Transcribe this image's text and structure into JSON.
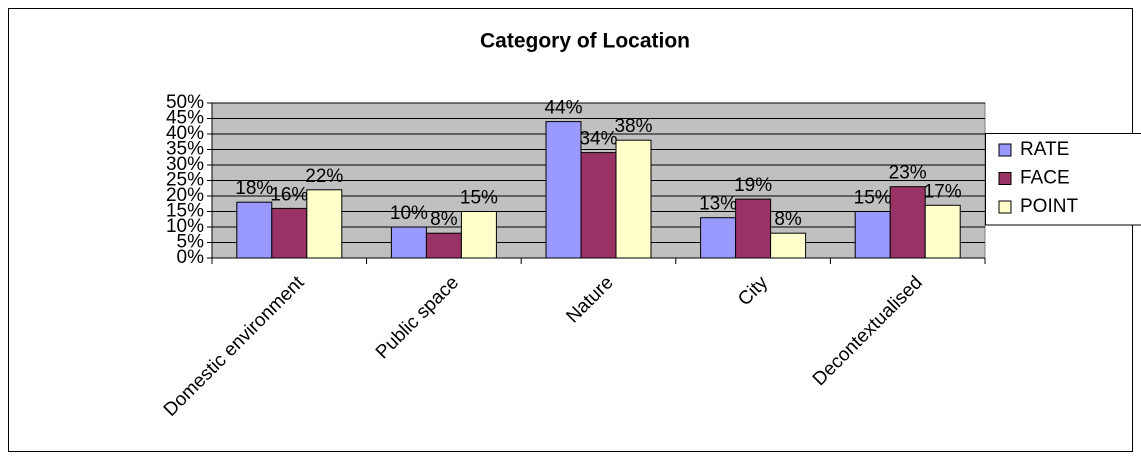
{
  "chart_data": {
    "type": "bar",
    "title": "Category of Location",
    "categories": [
      "Domestic environment",
      "Public space",
      "Nature",
      "City",
      "Decontextualised"
    ],
    "series": [
      {
        "name": "RATE",
        "color": "#9999ff",
        "values": [
          18,
          10,
          44,
          13,
          15
        ],
        "value_labels": [
          "18%",
          "10%",
          "44%",
          "13%",
          "15%"
        ]
      },
      {
        "name": "FACE",
        "color": "#993366",
        "values": [
          16,
          8,
          34,
          19,
          23
        ],
        "value_labels": [
          "16%",
          "8%",
          "34%",
          "19%",
          "23%"
        ]
      },
      {
        "name": "POINT",
        "color": "#ffffcc",
        "values": [
          22,
          15,
          38,
          8,
          17
        ],
        "value_labels": [
          "22%",
          "15%",
          "38%",
          "8%",
          "17%"
        ]
      }
    ],
    "ylim": [
      0,
      50
    ],
    "yticks": [
      {
        "value": 0,
        "label": "0%"
      },
      {
        "value": 5,
        "label": "5%"
      },
      {
        "value": 10,
        "label": "10%"
      },
      {
        "value": 15,
        "label": "15%"
      },
      {
        "value": 20,
        "label": "20%"
      },
      {
        "value": 25,
        "label": "25%"
      },
      {
        "value": 30,
        "label": "30%"
      },
      {
        "value": 35,
        "label": "35%"
      },
      {
        "value": 40,
        "label": "40%"
      },
      {
        "value": 45,
        "label": "45%"
      },
      {
        "value": 50,
        "label": "50%"
      }
    ],
    "grid": true,
    "legend": "right"
  }
}
